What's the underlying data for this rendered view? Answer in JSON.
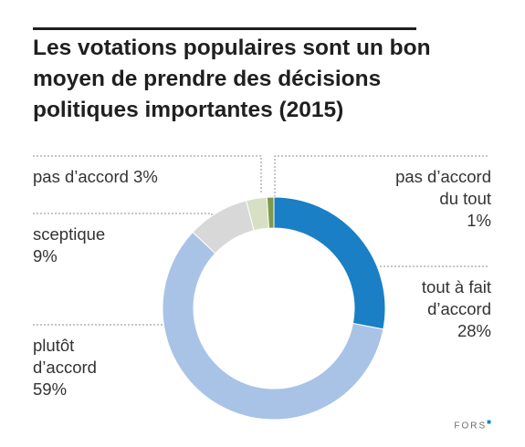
{
  "title": "Les votations populaires sont un bon moyen de prendre des décisions politiques importantes (2015)",
  "logo_text": "FORS",
  "colors": {
    "tout_a_fait": "#1a7fc5",
    "plutot": "#a9c3e6",
    "sceptique": "#d8d8d8",
    "pas_daccord": "#d7dfc4",
    "pas_du_tout": "#7f9a4d",
    "leader_lines": "#8c8c8c"
  },
  "chart_data": {
    "type": "pie",
    "donut": true,
    "title": "Les votations populaires sont un bon moyen de prendre des décisions politiques importantes (2015)",
    "unit": "%",
    "slices": [
      {
        "name": "tout à fait d’accord",
        "label": "tout à fait\nd’accord\n28%",
        "value": 28,
        "color": "#1a7fc5"
      },
      {
        "name": "plutôt d’accord",
        "label": "plutôt\nd’accord\n59%",
        "value": 59,
        "color": "#a9c3e6"
      },
      {
        "name": "sceptique",
        "label": "sceptique\n9%",
        "value": 9,
        "color": "#d8d8d8"
      },
      {
        "name": "pas d’accord",
        "label": "pas d’accord 3%",
        "value": 3,
        "color": "#d7dfc4"
      },
      {
        "name": "pas d’accord du tout",
        "label": "pas d’accord\ndu tout\n1%",
        "value": 1,
        "color": "#7f9a4d"
      }
    ]
  }
}
